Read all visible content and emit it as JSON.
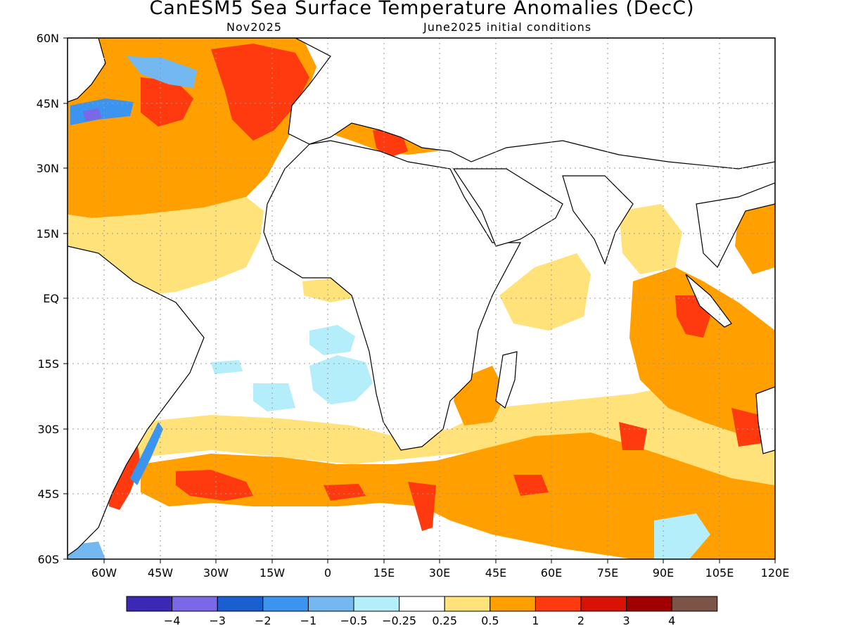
{
  "title": "CanESM5 Sea Surface Temperature Anomalies (DecC)",
  "subtitle_left": "Nov2025",
  "subtitle_right": "June2025 initial conditions",
  "map": {
    "lon_range": [
      -70,
      120
    ],
    "lat_range": [
      -60,
      60
    ],
    "gridlines": "dotted",
    "lat_ticks": [
      "60N",
      "45N",
      "30N",
      "15N",
      "EQ",
      "15S",
      "30S",
      "45S",
      "60S"
    ],
    "lon_ticks": [
      "60W",
      "45W",
      "30W",
      "15W",
      "0",
      "15E",
      "30E",
      "45E",
      "60E",
      "75E",
      "90E",
      "105E",
      "120E"
    ]
  },
  "colorbar": {
    "colors": [
      "#3b28b4",
      "#7b68e6",
      "#1a5fcf",
      "#3b94f0",
      "#74b8f2",
      "#b4eefa",
      "#ffffff",
      "#ffe27a",
      "#ff9f00",
      "#ff3a0e",
      "#d81306",
      "#a00000",
      "#7a5446"
    ],
    "labels": [
      "−4",
      "−3",
      "−2",
      "−1",
      "−0.5",
      "−0.25",
      "0.25",
      "0.5",
      "1",
      "2",
      "3",
      "4"
    ]
  }
}
